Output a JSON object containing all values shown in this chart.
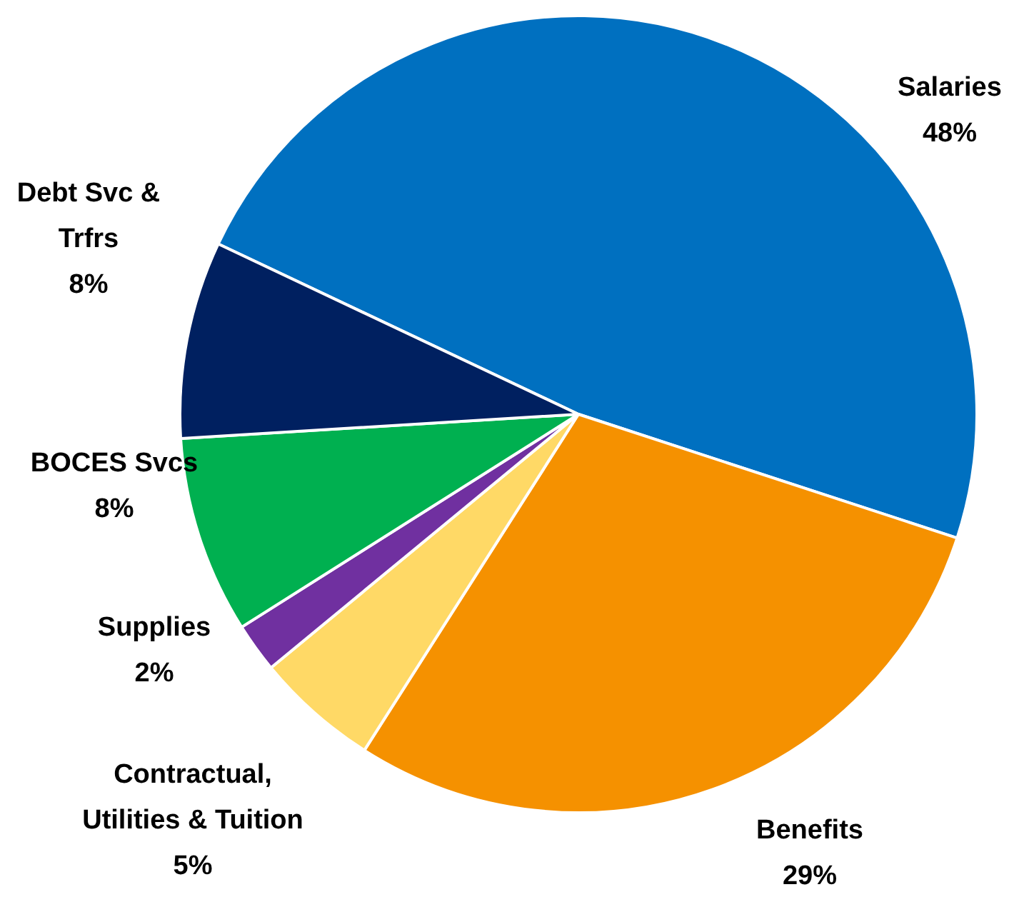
{
  "chart_data": {
    "type": "pie",
    "categories": [
      "Salaries",
      "Benefits",
      "Contractual, Utilities & Tuition",
      "Supplies",
      "BOCES Svcs",
      "Debt Svc & Trfrs"
    ],
    "values": [
      48,
      29,
      5,
      2,
      8,
      8
    ],
    "colors": [
      "#0070c0",
      "#f59100",
      "#ffd966",
      "#7030a0",
      "#00b050",
      "#002060"
    ],
    "value_labels": [
      "48%",
      "29%",
      "5%",
      "2%",
      "8%",
      "8%"
    ],
    "legend": false
  }
}
